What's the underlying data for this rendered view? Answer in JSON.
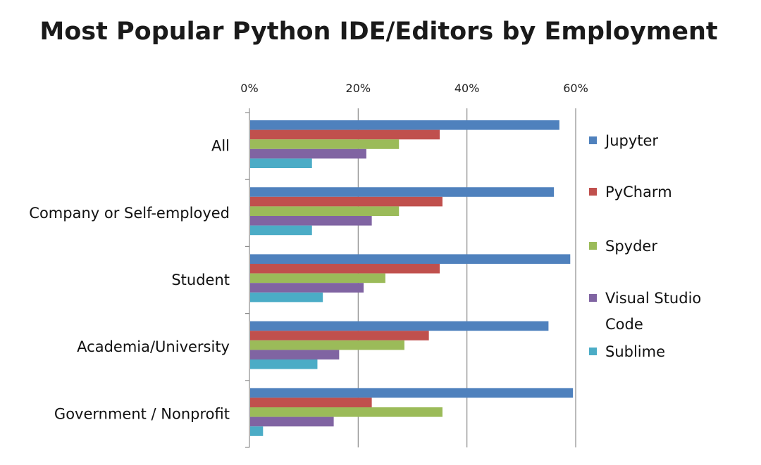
{
  "chart_data": {
    "type": "bar",
    "orientation": "horizontal",
    "title": "Most Popular Python IDE/Editors by Employment",
    "xlabel": "",
    "ylabel": "",
    "xlim": [
      0,
      60
    ],
    "x_ticks": [
      "0%",
      "20%",
      "40%",
      "60%"
    ],
    "grid": true,
    "legend_position": "right",
    "categories": [
      "All",
      "Company or Self-employed",
      "Student",
      "Academia/University",
      "Government / Nonprofit"
    ],
    "series": [
      {
        "name": "Jupyter",
        "color": "#4f81bd",
        "values": [
          57,
          56,
          59,
          55,
          59.5
        ]
      },
      {
        "name": "PyCharm",
        "color": "#c0504d",
        "values": [
          35,
          35.5,
          35,
          33,
          22.5
        ]
      },
      {
        "name": "Spyder",
        "color": "#9bbb59",
        "values": [
          27.5,
          27.5,
          25,
          28.5,
          35.5
        ]
      },
      {
        "name": "Visual Studio Code",
        "color": "#8064a2",
        "values": [
          21.5,
          22.5,
          21,
          16.5,
          15.5
        ]
      },
      {
        "name": "Sublime",
        "color": "#4bacc6",
        "values": [
          11.5,
          11.5,
          13.5,
          12.5,
          2.5
        ]
      }
    ]
  }
}
